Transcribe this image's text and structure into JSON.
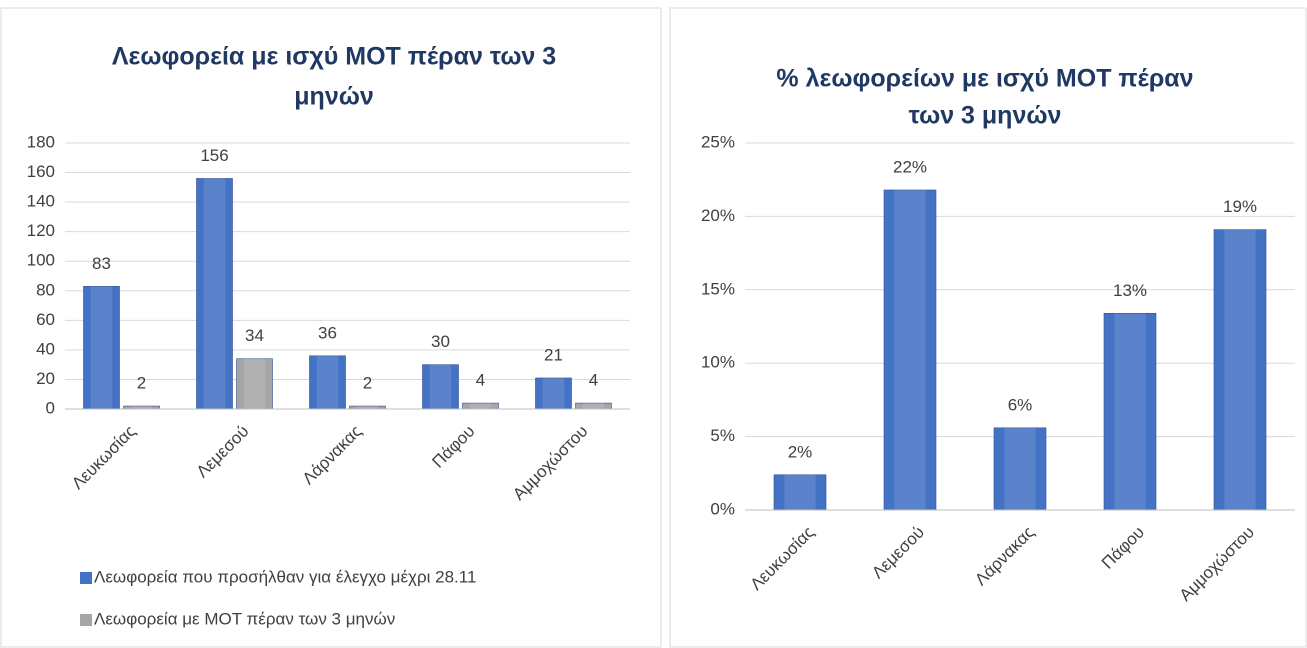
{
  "chart_data": [
    {
      "type": "bar",
      "title": "Λεωφορεία με ισχύ ΜΟΤ πέραν των 3 μηνών",
      "title_lines": [
        "Λεωφορεία με ισχύ ΜΟΤ πέραν των 3",
        "μηνών"
      ],
      "categories": [
        "Λευκωσίας",
        "Λεμεσού",
        "Λάρνακας",
        "Πάφου",
        "Αμμοχώστου"
      ],
      "series": [
        {
          "name": "Λεωφορεία που προσήλθαν για έλεγχο μέχρι 28.11",
          "color": "#4472c4",
          "values": [
            83,
            156,
            36,
            30,
            21
          ]
        },
        {
          "name": "Λεωφορεία με ΜΟΤ πέραν των 3 μηνών",
          "color": "#a5a5a5",
          "values": [
            2,
            34,
            2,
            4,
            4
          ]
        }
      ],
      "ylim": [
        0,
        180
      ],
      "yticks": [
        0,
        20,
        40,
        60,
        80,
        100,
        120,
        140,
        160,
        180
      ],
      "grid": true,
      "legend": "bottom"
    },
    {
      "type": "bar",
      "title": "% λεωφορείων με ισχύ ΜΟΤ πέραν των 3 μηνών",
      "title_lines": [
        "% λεωφορείων με ισχύ ΜΟΤ πέραν",
        "των 3 μηνών"
      ],
      "categories": [
        "Λευκωσίας",
        "Λεμεσού",
        "Λάρνακας",
        "Πάφου",
        "Αμμοχώστου"
      ],
      "values": [
        2.4,
        21.8,
        5.6,
        13.4,
        19.1
      ],
      "value_labels": [
        "2%",
        "22%",
        "6%",
        "13%",
        "19%"
      ],
      "color": "#4472c4",
      "ylim": [
        0,
        25
      ],
      "yticks": [
        {
          "value": 0,
          "label": "0%"
        },
        {
          "value": 5,
          "label": "5%"
        },
        {
          "value": 10,
          "label": "10%"
        },
        {
          "value": 15,
          "label": "15%"
        },
        {
          "value": 20,
          "label": "20%"
        },
        {
          "value": 25,
          "label": "25%"
        }
      ],
      "grid": true
    }
  ]
}
